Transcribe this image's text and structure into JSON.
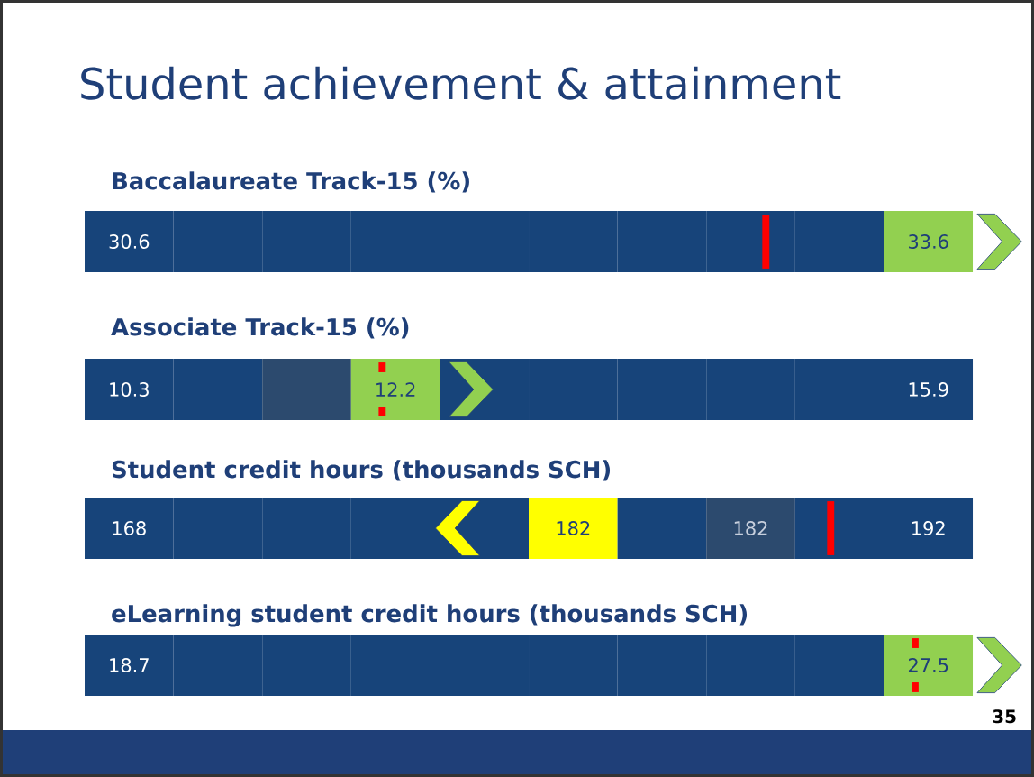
{
  "chart_data": [
    {
      "type": "other",
      "title": "Student achievement & attainment",
      "subtitle": "Baccalaureate Track-15 (%)",
      "categories": [
        null,
        null,
        null,
        null,
        null,
        null,
        null,
        null,
        null,
        null
      ],
      "values": [
        30.6,
        null,
        null,
        null,
        null,
        null,
        null,
        null,
        null,
        33.6
      ],
      "data_labels": true,
      "colors": [
        "#17447a",
        "#17447a",
        "#17447a",
        "#17447a",
        "#17447a",
        "#17447a",
        "#17447a",
        "#17447a",
        "#17447a",
        "#92d050"
      ]
    },
    {
      "type": "other",
      "title": "Associate Track-15 (%)",
      "categories": [
        null,
        null,
        null,
        null,
        null,
        null,
        null,
        null,
        null,
        null
      ],
      "values": [
        10.3,
        null,
        null,
        12.2,
        null,
        null,
        null,
        null,
        null,
        15.9
      ],
      "data_labels": true,
      "colors": [
        "#17447a",
        "#17447a",
        "#2c4a6e",
        "#92d050",
        "#17447a",
        "#17447a",
        "#17447a",
        "#17447a",
        "#17447a",
        "#17447a"
      ]
    },
    {
      "type": "other",
      "title": "Student credit hours (thousands SCH)",
      "categories": [
        null,
        null,
        null,
        null,
        null,
        null,
        null,
        null,
        null,
        null
      ],
      "values": [
        168,
        null,
        null,
        null,
        null,
        182,
        null,
        182,
        null,
        192
      ],
      "data_labels": true,
      "colors": [
        "#17447a",
        "#17447a",
        "#17447a",
        "#17447a",
        "#17447a",
        "#ffff00",
        "#17447a",
        "#2c4a6e",
        "#17447a",
        "#17447a"
      ]
    },
    {
      "type": "other",
      "title": "eLearning student credit hours (thousands SCH)",
      "categories": [
        null,
        null,
        null,
        null,
        null,
        null,
        null,
        null,
        null,
        null
      ],
      "values": [
        18.7,
        null,
        null,
        null,
        null,
        null,
        null,
        null,
        null,
        27.5
      ],
      "data_labels": true,
      "colors": [
        "#17447a",
        "#17447a",
        "#17447a",
        "#17447a",
        "#17447a",
        "#17447a",
        "#17447a",
        "#17447a",
        "#17447a",
        "#92d050"
      ],
      "annotations": [
        "35"
      ]
    }
  ]
}
